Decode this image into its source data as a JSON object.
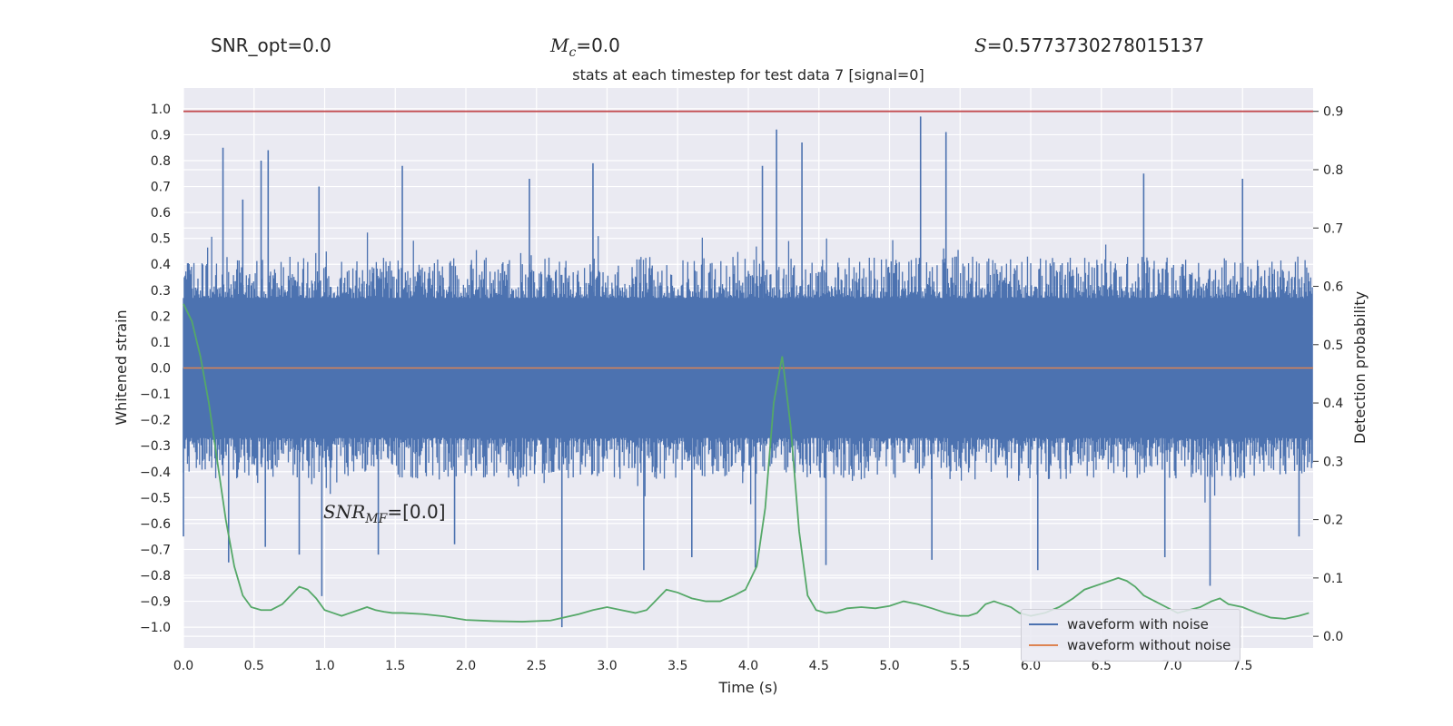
{
  "header": {
    "snr_opt": "SNR_opt=0.0",
    "mc_symbol": "M",
    "mc_sub": "c",
    "mc_value": "=0.0",
    "s_symbol": "S",
    "s_value": "=0.5773730278015137"
  },
  "annotation": {
    "snr_mf_symbol": "SNR",
    "snr_mf_sub": "MF",
    "snr_mf_value": "=[0.0]"
  },
  "chart_data": {
    "type": "line",
    "title": "stats at each timestep for test data 7 [signal=0]",
    "xlabel": "Time (s)",
    "ylabel": "Whitened strain",
    "y2label": "Detection probability",
    "xlim": [
      0.0,
      8.0
    ],
    "ylim": [
      -1.08,
      1.08
    ],
    "y2lim": [
      -0.02,
      0.94
    ],
    "xticks": [
      "0.0",
      "0.5",
      "1.0",
      "1.5",
      "2.0",
      "2.5",
      "3.0",
      "3.5",
      "4.0",
      "4.5",
      "5.0",
      "5.5",
      "6.0",
      "6.5",
      "7.0",
      "7.5"
    ],
    "yticks": [
      "1.0",
      "0.9",
      "0.8",
      "0.7",
      "0.6",
      "0.5",
      "0.4",
      "0.3",
      "0.2",
      "0.1",
      "0.0",
      "-0.1",
      "-0.2",
      "-0.3",
      "-0.4",
      "-0.5",
      "-0.6",
      "-0.7",
      "-0.8",
      "-0.9",
      "-1.0"
    ],
    "y2ticks": [
      "0.9",
      "0.8",
      "0.7",
      "0.6",
      "0.5",
      "0.4",
      "0.3",
      "0.2",
      "0.1",
      "0.0"
    ],
    "grid": true,
    "legend_position": "lower-right",
    "threshold": 0.9,
    "series": [
      {
        "name": "waveform with noise",
        "color": "#4c72b0",
        "axis": "left",
        "note": "dense noise, approximately +/-0.3 with spikes",
        "peaks": [
          {
            "x": 0.28,
            "y": 0.85
          },
          {
            "x": 0.42,
            "y": 0.65
          },
          {
            "x": 0.55,
            "y": 0.8
          },
          {
            "x": 0.6,
            "y": 0.84
          },
          {
            "x": 0.96,
            "y": 0.7
          },
          {
            "x": 1.55,
            "y": 0.78
          },
          {
            "x": 2.45,
            "y": 0.73
          },
          {
            "x": 2.9,
            "y": 0.79
          },
          {
            "x": 4.1,
            "y": 0.78
          },
          {
            "x": 4.2,
            "y": 0.92
          },
          {
            "x": 4.38,
            "y": 0.87
          },
          {
            "x": 5.22,
            "y": 0.97
          },
          {
            "x": 5.4,
            "y": 0.91
          },
          {
            "x": 6.8,
            "y": 0.75
          },
          {
            "x": 7.5,
            "y": 0.73
          }
        ],
        "troughs": [
          {
            "x": 0.0,
            "y": -0.65
          },
          {
            "x": 0.32,
            "y": -0.75
          },
          {
            "x": 0.58,
            "y": -0.69
          },
          {
            "x": 0.82,
            "y": -0.72
          },
          {
            "x": 0.98,
            "y": -0.88
          },
          {
            "x": 1.38,
            "y": -0.72
          },
          {
            "x": 1.92,
            "y": -0.68
          },
          {
            "x": 2.68,
            "y": -1.0
          },
          {
            "x": 3.26,
            "y": -0.78
          },
          {
            "x": 3.6,
            "y": -0.73
          },
          {
            "x": 4.05,
            "y": -0.77
          },
          {
            "x": 4.55,
            "y": -0.76
          },
          {
            "x": 5.3,
            "y": -0.74
          },
          {
            "x": 6.05,
            "y": -0.78
          },
          {
            "x": 6.95,
            "y": -0.73
          },
          {
            "x": 7.27,
            "y": -0.84
          },
          {
            "x": 7.9,
            "y": -0.65
          }
        ]
      },
      {
        "name": "waveform without noise",
        "color": "#dd8452",
        "axis": "left",
        "x": [
          0.0,
          8.0
        ],
        "y": [
          0.0,
          0.0
        ]
      },
      {
        "name": "",
        "color": "#55a868",
        "axis": "right",
        "x": [
          0.0,
          0.06,
          0.12,
          0.18,
          0.24,
          0.3,
          0.36,
          0.42,
          0.48,
          0.55,
          0.62,
          0.7,
          0.76,
          0.82,
          0.88,
          0.94,
          1.0,
          1.06,
          1.12,
          1.18,
          1.24,
          1.3,
          1.36,
          1.42,
          1.48,
          1.55,
          1.7,
          1.85,
          2.0,
          2.2,
          2.4,
          2.6,
          2.8,
          2.9,
          3.0,
          3.1,
          3.2,
          3.28,
          3.36,
          3.42,
          3.5,
          3.6,
          3.7,
          3.8,
          3.9,
          3.98,
          4.06,
          4.12,
          4.18,
          4.24,
          4.3,
          4.36,
          4.42,
          4.48,
          4.55,
          4.62,
          4.7,
          4.8,
          4.9,
          5.0,
          5.1,
          5.2,
          5.3,
          5.4,
          5.5,
          5.56,
          5.62,
          5.68,
          5.74,
          5.8,
          5.86,
          5.92,
          6.0,
          6.1,
          6.2,
          6.3,
          6.38,
          6.44,
          6.5,
          6.56,
          6.62,
          6.68,
          6.74,
          6.8,
          6.88,
          6.96,
          7.04,
          7.12,
          7.2,
          7.28,
          7.34,
          7.4,
          7.5,
          7.6,
          7.7,
          7.8,
          7.9,
          7.97
        ],
        "y": [
          0.57,
          0.54,
          0.48,
          0.4,
          0.3,
          0.2,
          0.12,
          0.07,
          0.05,
          0.045,
          0.045,
          0.055,
          0.07,
          0.085,
          0.08,
          0.065,
          0.045,
          0.04,
          0.035,
          0.04,
          0.045,
          0.05,
          0.045,
          0.042,
          0.04,
          0.04,
          0.038,
          0.034,
          0.028,
          0.026,
          0.025,
          0.027,
          0.038,
          0.045,
          0.05,
          0.045,
          0.04,
          0.045,
          0.065,
          0.08,
          0.075,
          0.065,
          0.06,
          0.06,
          0.07,
          0.08,
          0.12,
          0.22,
          0.4,
          0.48,
          0.36,
          0.18,
          0.07,
          0.045,
          0.04,
          0.042,
          0.048,
          0.05,
          0.048,
          0.052,
          0.06,
          0.055,
          0.048,
          0.04,
          0.035,
          0.035,
          0.04,
          0.055,
          0.06,
          0.055,
          0.05,
          0.04,
          0.035,
          0.04,
          0.05,
          0.065,
          0.08,
          0.085,
          0.09,
          0.095,
          0.1,
          0.095,
          0.085,
          0.07,
          0.06,
          0.05,
          0.04,
          0.045,
          0.05,
          0.06,
          0.065,
          0.055,
          0.05,
          0.04,
          0.032,
          0.03,
          0.035,
          0.04
        ]
      },
      {
        "name": "",
        "color": "#c44e52",
        "axis": "right",
        "x": [
          0.0,
          8.0
        ],
        "y": [
          0.9,
          0.9
        ]
      }
    ]
  }
}
